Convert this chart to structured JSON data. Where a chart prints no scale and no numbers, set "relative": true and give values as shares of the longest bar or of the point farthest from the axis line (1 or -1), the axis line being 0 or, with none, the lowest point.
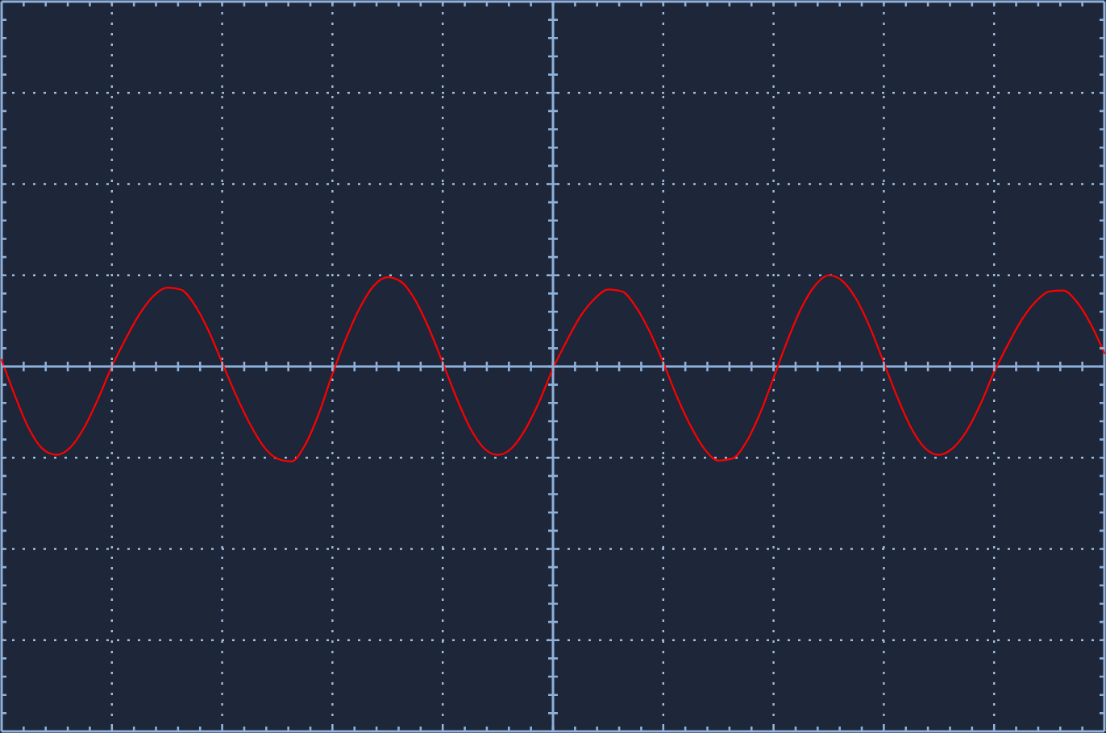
{
  "chart_data": {
    "type": "line",
    "relative": true,
    "categories": [
      null,
      null,
      null,
      null,
      null,
      null,
      null,
      null,
      null,
      null,
      null,
      null,
      null,
      null,
      null,
      null,
      null,
      null,
      null,
      null,
      null,
      null,
      null,
      null,
      null,
      null,
      null,
      null,
      null,
      null,
      null,
      null,
      null,
      null,
      null,
      null,
      null,
      null,
      null,
      null,
      null,
      null,
      null,
      null,
      null,
      null,
      null,
      null,
      null,
      null,
      null,
      null,
      null,
      null,
      null,
      null,
      null,
      null,
      null,
      null,
      null,
      null,
      null,
      null,
      null,
      null,
      null,
      null,
      null,
      null,
      null,
      null,
      null,
      null,
      null,
      null,
      null,
      null,
      null,
      null,
      null
    ],
    "series": [
      {
        "color": "#ff0000",
        "values": [
          0.07,
          -0.32,
          -0.66,
          -0.87,
          -0.93,
          -0.85,
          -0.64,
          -0.34,
          0,
          0.29,
          0.55,
          0.74,
          0.83,
          0.81,
          0.65,
          0.38,
          0.04,
          -0.3,
          -0.6,
          -0.84,
          -0.97,
          -1,
          -0.83,
          -0.5,
          -0.08,
          0.3,
          0.62,
          0.85,
          0.94,
          0.89,
          0.7,
          0.4,
          0.04,
          -0.33,
          -0.65,
          -0.86,
          -0.93,
          -0.86,
          -0.66,
          -0.37,
          -0.02,
          0.27,
          0.53,
          0.71,
          0.81,
          0.79,
          0.63,
          0.37,
          0.04,
          -0.32,
          -0.63,
          -0.87,
          -0.99,
          -0.97,
          -0.8,
          -0.5,
          -0.12,
          0.27,
          0.61,
          0.85,
          0.96,
          0.9,
          0.71,
          0.41,
          0.04,
          -0.33,
          -0.65,
          -0.86,
          -0.93,
          -0.86,
          -0.68,
          -0.4,
          -0.06,
          0.23,
          0.49,
          0.68,
          0.79,
          0.8,
          0.68,
          0.45,
          0.14
        ]
      }
    ],
    "ref_lines": [
      {
        "axis": "y",
        "value": 0,
        "color": "#8fb0d8",
        "line_style": "solid"
      }
    ],
    "grid": true,
    "marker": "none",
    "line_style": "solid"
  }
}
